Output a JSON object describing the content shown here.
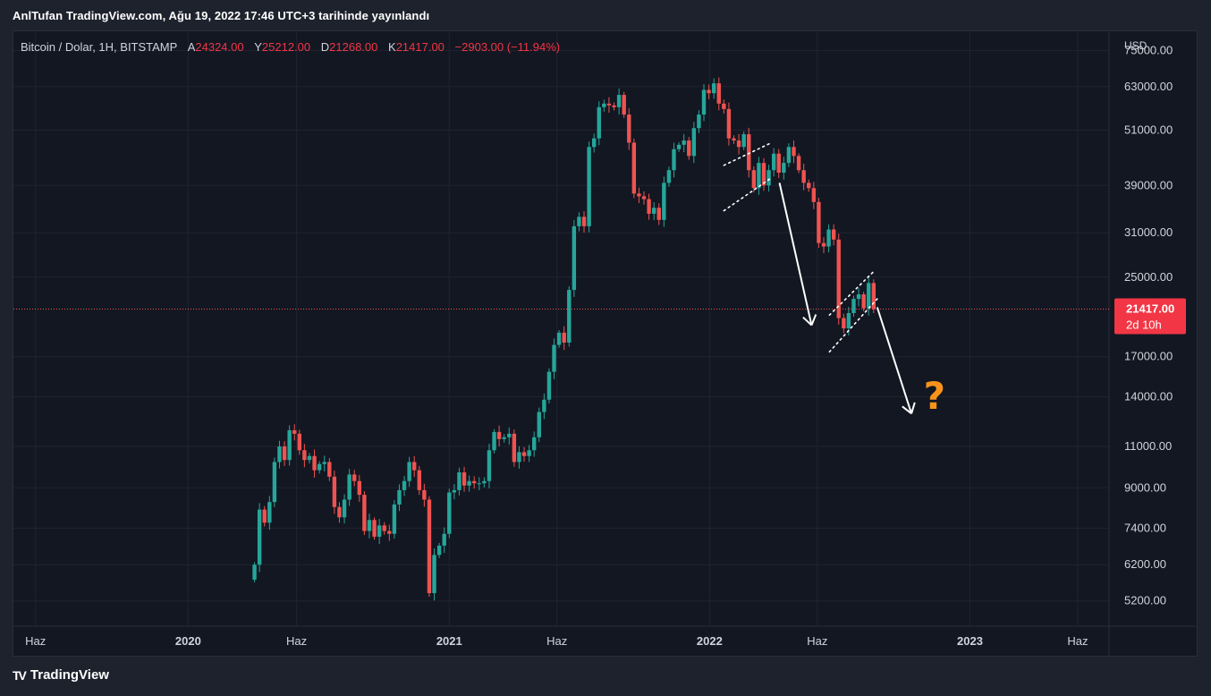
{
  "header": {
    "publish_text": "AnlTufan TradingView.com, Ağu 19, 2022 17:46 UTC+3 tarihinde yayınlandı"
  },
  "legend": {
    "symbol": "Bitcoin / Dolar, 1H, BITSTAMP",
    "open_label": "A",
    "open": "24324.00",
    "high_label": "Y",
    "high": "25212.00",
    "low_label": "D",
    "low": "21268.00",
    "close_label": "K",
    "close": "21417.00",
    "change": "−2903.00 (−11.94%)"
  },
  "footer": {
    "brand": "TradingView",
    "logo_glyph": "TV"
  },
  "colors": {
    "up": "#26a69a",
    "down": "#ef5350",
    "background": "#131722",
    "grid": "#1f2430",
    "text": "#d1d4dc",
    "accent": "#f7931a"
  },
  "chart_data": {
    "type": "candlestick",
    "scale": "log",
    "currency": "USD",
    "ylabel": "USD",
    "y_ticks": [
      5200,
      6200,
      7400,
      9000,
      11000,
      14000,
      17000,
      25000,
      31000,
      39000,
      51000,
      63000,
      75000
    ],
    "y_tick_labels": [
      "5200.00",
      "6200.00",
      "7400.00",
      "9000.00",
      "11000.00",
      "14000.00",
      "17000.00",
      "25000.00",
      "31000.00",
      "39000.00",
      "51000.00",
      "63000.00",
      "75000.00"
    ],
    "ylim": [
      4600,
      82000
    ],
    "x_ticks": [
      {
        "label": "Haz",
        "date": "2019-06-01",
        "bold": false
      },
      {
        "label": "2020",
        "date": "2020-01-01",
        "bold": true
      },
      {
        "label": "Haz",
        "date": "2020-06-01",
        "bold": false
      },
      {
        "label": "2021",
        "date": "2021-01-01",
        "bold": true
      },
      {
        "label": "Haz",
        "date": "2021-06-01",
        "bold": false
      },
      {
        "label": "2022",
        "date": "2022-01-01",
        "bold": true
      },
      {
        "label": "Haz",
        "date": "2022-06-01",
        "bold": false
      },
      {
        "label": "2023",
        "date": "2023-01-01",
        "bold": true
      },
      {
        "label": "Haz",
        "date": "2023-06-01",
        "bold": false
      }
    ],
    "xlim": [
      "2019-05-01",
      "2023-07-15"
    ],
    "last_price": {
      "value": 21417,
      "label": "21417.00",
      "countdown": "2d 10h"
    },
    "annotation_text": "?",
    "closes": [
      6200,
      8100,
      7600,
      8400,
      10200,
      11000,
      10300,
      11900,
      11700,
      10800,
      10300,
      10500,
      9800,
      10100,
      10200,
      9500,
      8200,
      7800,
      8500,
      9600,
      9300,
      8700,
      7300,
      7700,
      7100,
      7500,
      7300,
      7200,
      8300,
      8900,
      9300,
      10200,
      9800,
      8900,
      8500,
      5400,
      6500,
      6800,
      7200,
      8800,
      8900,
      9700,
      9100,
      9300,
      9200,
      9200,
      9300,
      10800,
      11800,
      11400,
      11500,
      11700,
      10200,
      10700,
      10500,
      10800,
      11500,
      13000,
      13800,
      15800,
      18000,
      19100,
      18200,
      23500,
      32000,
      33500,
      32000,
      47000,
      49000,
      57000,
      58000,
      57500,
      57000,
      60500,
      55000,
      48000,
      37500,
      37000,
      36500,
      34000,
      35000,
      33000,
      39500,
      42000,
      46500,
      47500,
      48500,
      45000,
      51500,
      55000,
      62000,
      61000,
      64000,
      58000,
      56500,
      49000,
      48500,
      47000,
      50000,
      42000,
      38500,
      43500,
      39000,
      42000,
      45500,
      41500,
      43500,
      47000,
      45000,
      42000,
      39500,
      38500,
      36000,
      29500,
      29000,
      31500,
      30000,
      20500,
      19500,
      21000,
      22500,
      23000,
      21500,
      24300,
      21417
    ],
    "channels": [
      {
        "name": "channel-1",
        "lines": [
          [
            [
              "2022-01-21",
              43000
            ],
            [
              "2022-03-29",
              48000
            ]
          ],
          [
            [
              "2022-01-21",
              34500
            ],
            [
              "2022-03-29",
              40500
            ]
          ]
        ]
      },
      {
        "name": "channel-2",
        "lines": [
          [
            [
              "2022-06-18",
              20800
            ],
            [
              "2022-08-18",
              25600
            ]
          ],
          [
            [
              "2022-06-18",
              17400
            ],
            [
              "2022-08-24",
              22500
            ]
          ]
        ]
      }
    ],
    "arrows": [
      {
        "name": "down-arrow-1",
        "from": [
          "2022-04-09",
          39500
        ],
        "to": [
          "2022-05-24",
          19800
        ]
      },
      {
        "name": "down-arrow-2",
        "from": [
          "2022-08-24",
          21600
        ],
        "to": [
          "2022-10-11",
          12900
        ]
      }
    ],
    "question_mark_at": [
      "2022-10-28",
      13800
    ]
  }
}
